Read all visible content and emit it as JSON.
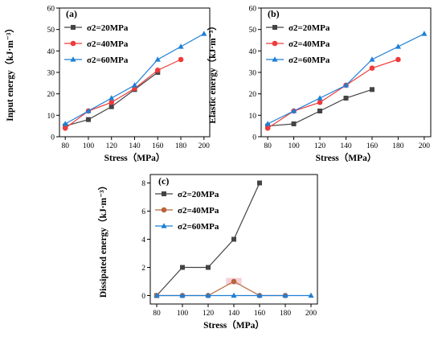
{
  "colors": {
    "s20": "#444444",
    "s40": "#ee3b3b",
    "s60": "#1e7fd6",
    "s40_dissipated": "#b8643c",
    "s40_highlight": "#f6cfd6"
  },
  "chart_data": [
    {
      "type": "line",
      "panel_label": "(a)",
      "xlabel": "Stress（MPa）",
      "ylabel": "Input energy（kJ·m⁻³）",
      "xlim": [
        75,
        205
      ],
      "ylim": [
        0,
        60
      ],
      "x_ticks": [
        80,
        100,
        120,
        140,
        160,
        180,
        200
      ],
      "y_ticks": [
        0,
        10,
        20,
        30,
        40,
        50,
        60
      ],
      "legend_position": "top-left",
      "series": [
        {
          "name": "σ2=20MPa",
          "marker": "square",
          "x": [
            80,
            100,
            120,
            140,
            160
          ],
          "y": [
            5,
            8,
            14,
            22,
            30
          ]
        },
        {
          "name": "σ2=40MPa",
          "marker": "circle",
          "x": [
            80,
            100,
            120,
            140,
            160,
            180
          ],
          "y": [
            4,
            12,
            16,
            22.5,
            31,
            36
          ]
        },
        {
          "name": "σ2=60MPa",
          "marker": "triangle",
          "x": [
            80,
            100,
            120,
            140,
            160,
            180,
            200
          ],
          "y": [
            6,
            12,
            18,
            24,
            36,
            42,
            48
          ]
        }
      ]
    },
    {
      "type": "line",
      "panel_label": "(b)",
      "xlabel": "Stress（MPa）",
      "ylabel": "Elastic energy（kJ·m⁻³）",
      "xlim": [
        75,
        205
      ],
      "ylim": [
        0,
        60
      ],
      "x_ticks": [
        80,
        100,
        120,
        140,
        160,
        180,
        200
      ],
      "y_ticks": [
        0,
        10,
        20,
        30,
        40,
        50,
        60
      ],
      "legend_position": "top-left",
      "series": [
        {
          "name": "σ2=20MPa",
          "marker": "square",
          "x": [
            80,
            100,
            120,
            140,
            160
          ],
          "y": [
            5,
            6,
            12,
            18,
            22
          ]
        },
        {
          "name": "σ2=40MPa",
          "marker": "circle",
          "x": [
            80,
            100,
            120,
            140,
            160,
            180
          ],
          "y": [
            4,
            12,
            16,
            24,
            32,
            36
          ]
        },
        {
          "name": "σ2=60MPa",
          "marker": "triangle",
          "x": [
            80,
            100,
            120,
            140,
            160,
            180,
            200
          ],
          "y": [
            6,
            12,
            18,
            24,
            36,
            42,
            48
          ]
        }
      ]
    },
    {
      "type": "line",
      "panel_label": "(c)",
      "xlabel": "Stress（MPa）",
      "ylabel": "Dissipated energy（kJ·m⁻³）",
      "xlim": [
        75,
        205
      ],
      "ylim": [
        -0.6,
        8.6
      ],
      "x_ticks": [
        80,
        100,
        120,
        140,
        160,
        180,
        200
      ],
      "y_ticks": [
        0,
        2,
        4,
        6,
        8
      ],
      "legend_position": "top-left",
      "series": [
        {
          "name": "σ2=20MPa",
          "marker": "square",
          "x": [
            80,
            100,
            120,
            140,
            160
          ],
          "y": [
            0,
            2,
            2,
            4,
            8
          ]
        },
        {
          "name": "σ2=40MPa",
          "marker": "circle",
          "x": [
            80,
            100,
            120,
            140,
            160,
            180
          ],
          "y": [
            0,
            0,
            0,
            1,
            0,
            0
          ]
        },
        {
          "name": "σ2=60MPa",
          "marker": "triangle",
          "x": [
            80,
            100,
            120,
            140,
            160,
            180,
            200
          ],
          "y": [
            0,
            0,
            0,
            0,
            0,
            0,
            0
          ]
        }
      ]
    }
  ]
}
